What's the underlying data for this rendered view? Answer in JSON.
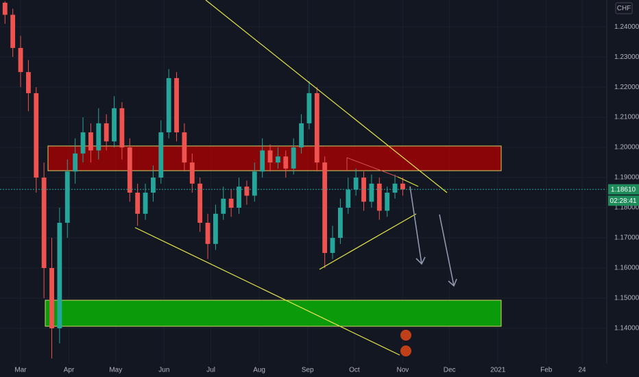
{
  "chart_data": {
    "type": "candlestick",
    "currency": "CHF",
    "series": {
      "up_color": "#26a69a",
      "down_color": "#ef5350",
      "x": [
        -10,
        -5,
        0,
        5,
        10,
        15,
        20,
        25,
        30,
        35,
        40,
        45,
        50,
        55,
        60,
        65,
        70,
        75,
        80,
        85,
        90,
        95,
        100,
        105,
        110,
        115,
        120,
        125,
        130,
        135,
        140,
        145,
        150,
        155,
        160,
        165,
        170,
        175,
        180,
        185,
        190,
        195,
        200,
        205,
        210,
        215,
        220,
        225,
        230,
        235,
        240,
        245
      ],
      "open": [
        1.248,
        1.244,
        1.233,
        1.225,
        1.218,
        1.19,
        1.16,
        1.14,
        1.175,
        1.192,
        1.198,
        1.205,
        1.199,
        1.208,
        1.202,
        1.213,
        1.2,
        1.185,
        1.178,
        1.185,
        1.19,
        1.205,
        1.223,
        1.205,
        1.195,
        1.188,
        1.175,
        1.168,
        1.178,
        1.183,
        1.18,
        1.187,
        1.184,
        1.192,
        1.199,
        1.195,
        1.197,
        1.193,
        1.2,
        1.208,
        1.218,
        1.195,
        1.165,
        1.17,
        1.18,
        1.186,
        1.19,
        1.182,
        1.188,
        1.179,
        1.185,
        1.188
      ],
      "high": [
        1.2485,
        1.246,
        1.237,
        1.229,
        1.22,
        1.195,
        1.17,
        1.18,
        1.196,
        1.203,
        1.21,
        1.208,
        1.213,
        1.211,
        1.217,
        1.215,
        1.203,
        1.188,
        1.188,
        1.194,
        1.209,
        1.226,
        1.225,
        1.208,
        1.198,
        1.19,
        1.178,
        1.181,
        1.187,
        1.186,
        1.19,
        1.189,
        1.195,
        1.203,
        1.201,
        1.2,
        1.199,
        1.203,
        1.211,
        1.222,
        1.22,
        1.197,
        1.174,
        1.183,
        1.19,
        1.193,
        1.192,
        1.191,
        1.19,
        1.187,
        1.191,
        1.19
      ],
      "low": [
        1.241,
        1.23,
        1.22,
        1.212,
        1.185,
        1.15,
        1.13,
        1.135,
        1.17,
        1.188,
        1.195,
        1.195,
        1.196,
        1.199,
        1.2,
        1.196,
        1.182,
        1.174,
        1.176,
        1.182,
        1.188,
        1.203,
        1.202,
        1.192,
        1.185,
        1.172,
        1.163,
        1.166,
        1.176,
        1.177,
        1.178,
        1.181,
        1.182,
        1.19,
        1.192,
        1.193,
        1.19,
        1.191,
        1.198,
        1.206,
        1.192,
        1.16,
        1.163,
        1.168,
        1.178,
        1.184,
        1.179,
        1.18,
        1.176,
        1.177,
        1.183,
        1.184
      ],
      "close": [
        1.244,
        1.233,
        1.225,
        1.218,
        1.19,
        1.16,
        1.14,
        1.175,
        1.192,
        1.198,
        1.205,
        1.199,
        1.208,
        1.202,
        1.213,
        1.2,
        1.185,
        1.178,
        1.185,
        1.19,
        1.205,
        1.223,
        1.205,
        1.195,
        1.188,
        1.175,
        1.168,
        1.178,
        1.183,
        1.18,
        1.187,
        1.184,
        1.192,
        1.199,
        1.195,
        1.197,
        1.193,
        1.2,
        1.208,
        1.218,
        1.195,
        1.165,
        1.17,
        1.18,
        1.186,
        1.19,
        1.182,
        1.188,
        1.179,
        1.185,
        1.188,
        1.1861
      ]
    },
    "ylim": [
      1.1284,
      1.2489
    ],
    "yticks": [
      {
        "value": 1.24,
        "label": "1.24000"
      },
      {
        "value": 1.23,
        "label": "1.23000"
      },
      {
        "value": 1.22,
        "label": "1.22000"
      },
      {
        "value": 1.21,
        "label": "1.21000"
      },
      {
        "value": 1.2,
        "label": "1.20000"
      },
      {
        "value": 1.19,
        "label": "1.19000"
      },
      {
        "value": 1.18,
        "label": "1.18000"
      },
      {
        "value": 1.17,
        "label": "1.17000"
      },
      {
        "value": 1.16,
        "label": "1.16000"
      },
      {
        "value": 1.15,
        "label": "1.15000"
      },
      {
        "value": 1.14,
        "label": "1.14000"
      }
    ],
    "xlim": [
      -13.2,
      375.8
    ],
    "xticks": [
      {
        "value": 0,
        "label": "Mar"
      },
      {
        "value": 31,
        "label": "Apr"
      },
      {
        "value": 61,
        "label": "May"
      },
      {
        "value": 92,
        "label": "Jun"
      },
      {
        "value": 122,
        "label": "Jul"
      },
      {
        "value": 153,
        "label": "Aug"
      },
      {
        "value": 184,
        "label": "Sep"
      },
      {
        "value": 214,
        "label": "Oct"
      },
      {
        "value": 245,
        "label": "Nov"
      },
      {
        "value": 275,
        "label": "Dec"
      },
      {
        "value": 306,
        "label": "2021"
      },
      {
        "value": 337,
        "label": "Feb"
      },
      {
        "value": 360,
        "label": "24"
      }
    ],
    "grid": true,
    "last_price": {
      "value": 1.1861,
      "label": "1.18610"
    },
    "countdown": "02:28:41"
  }
}
